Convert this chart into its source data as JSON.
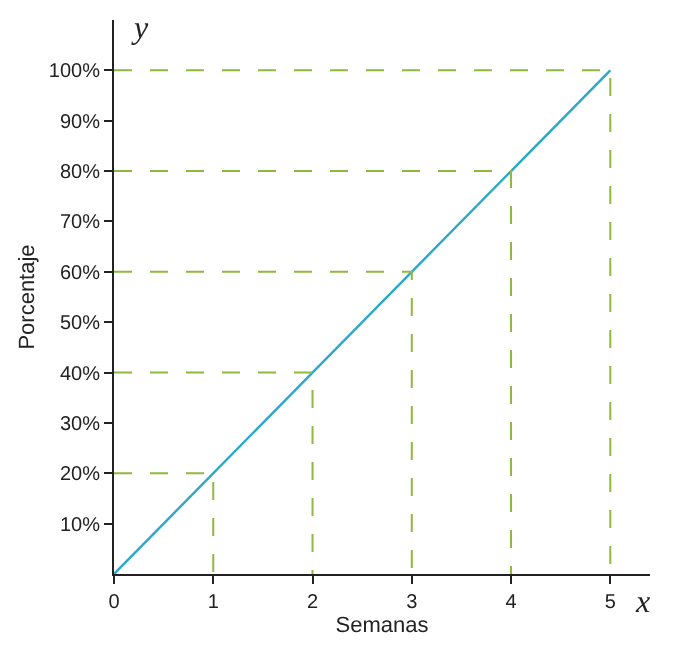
{
  "chart_data": {
    "type": "line",
    "xlabel": "Semanas",
    "ylabel": "Porcentaje",
    "annotations": [
      "y",
      "x"
    ],
    "x": [
      0,
      5
    ],
    "series": [
      {
        "color": "#2aa7c9",
        "values": [
          0,
          100
        ]
      },
      {
        "color": "#8fb83e",
        "line_style": "dashed",
        "x": [
          0,
          1,
          1
        ],
        "values": [
          20,
          20,
          0
        ]
      },
      {
        "color": "#8fb83e",
        "line_style": "dashed",
        "x": [
          0,
          2,
          2
        ],
        "values": [
          40,
          40,
          0
        ]
      },
      {
        "color": "#8fb83e",
        "line_style": "dashed",
        "x": [
          0,
          3,
          3
        ],
        "values": [
          60,
          60,
          0
        ]
      },
      {
        "color": "#8fb83e",
        "line_style": "dashed",
        "x": [
          0,
          4,
          4
        ],
        "values": [
          80,
          80,
          0
        ]
      },
      {
        "color": "#8fb83e",
        "line_style": "dashed",
        "x": [
          0,
          5,
          5
        ],
        "values": [
          100,
          100,
          0
        ]
      }
    ],
    "xlim": [
      0,
      5.4
    ],
    "ylim": [
      0,
      110
    ],
    "xticks": [
      0,
      1,
      2,
      3,
      4,
      5
    ],
    "yticks": [
      {
        "value": 10,
        "label": "10%"
      },
      {
        "value": 20,
        "label": "20%"
      },
      {
        "value": 30,
        "label": "30%"
      },
      {
        "value": 40,
        "label": "40%"
      },
      {
        "value": 50,
        "label": "50%"
      },
      {
        "value": 60,
        "label": "60%"
      },
      {
        "value": 70,
        "label": "70%"
      },
      {
        "value": 80,
        "label": "80%"
      },
      {
        "value": 90,
        "label": "90%"
      },
      {
        "value": 100,
        "label": "100%"
      }
    ],
    "marker": "none"
  }
}
